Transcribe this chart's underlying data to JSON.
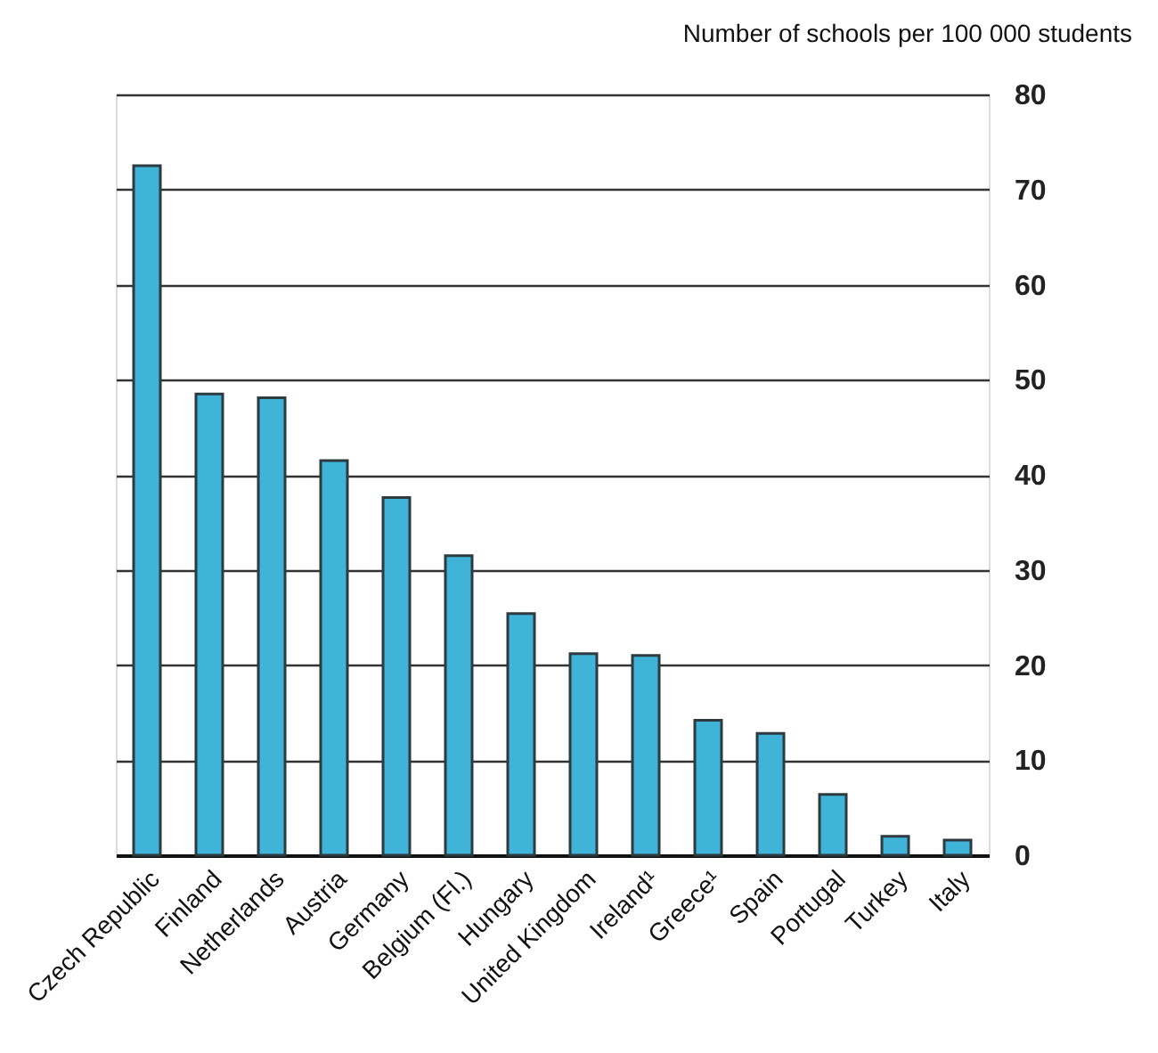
{
  "chart_data": {
    "type": "bar",
    "ylabel": "Number of schools per 100 000 students",
    "categories": [
      "Czech Republic",
      "Finland",
      "Netherlands",
      "Austria",
      "Germany",
      "Belgium (Fl.)",
      "Hungary",
      "United Kingdom",
      "Ireland¹",
      "Greece¹",
      "Spain",
      "Portugal",
      "Turkey",
      "Italy"
    ],
    "values": [
      72.5,
      48.5,
      48.1,
      41.5,
      37.6,
      31.5,
      25.4,
      21.2,
      21.0,
      14.2,
      12.8,
      6.4,
      2.0,
      1.6
    ],
    "color": "#3fb3d8",
    "ylim": [
      0,
      80
    ],
    "yticks": [
      0,
      10,
      20,
      30,
      40,
      50,
      60,
      70,
      80
    ],
    "grid": "y"
  }
}
